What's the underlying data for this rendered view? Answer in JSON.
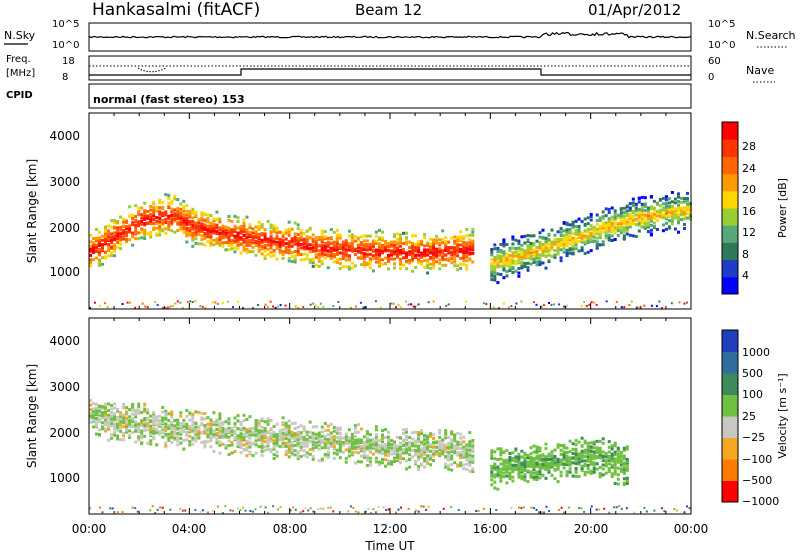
{
  "header": {
    "station": "Hankasalmi (fitACF)",
    "beam": "Beam 12",
    "date": "01/Apr/2012"
  },
  "noise_panel": {
    "left_label": "N.Sky",
    "left_ticks": [
      "10^5",
      "10^0"
    ],
    "right_ticks": [
      "10^5",
      "10^0"
    ],
    "right_label": "N.Search"
  },
  "freq_panel": {
    "label_line1": "Freq.",
    "label_line2": "[MHz]",
    "left_ticks": [
      "18",
      "8"
    ],
    "right_ticks": [
      "60",
      "0"
    ],
    "right_label": "Nave",
    "cpid_label": "CPID"
  },
  "cpid_text": "normal (fast stereo) 153",
  "power_panel": {
    "ylabel": "Slant Range [km]",
    "yticks": [
      "4000",
      "3000",
      "2000",
      "1000"
    ],
    "colorbar_label": "Power [dB]",
    "colorbar_ticks": [
      "28",
      "24",
      "20",
      "16",
      "12",
      "8",
      "4"
    ],
    "colors": [
      "#0000ff",
      "#1e3cc8",
      "#2d7a5a",
      "#55a878",
      "#9acd32",
      "#ffd700",
      "#ff9900",
      "#ff6600",
      "#ff3300",
      "#ff0000"
    ]
  },
  "velocity_panel": {
    "ylabel": "Slant Range [km]",
    "yticks": [
      "4000",
      "3000",
      "2000",
      "1000"
    ],
    "colorbar_label": "Velocity [m s⁻¹]",
    "colorbar_ticks": [
      "1000",
      "500",
      "100",
      "25",
      "−25",
      "−100",
      "−500",
      "−1000"
    ],
    "colors": [
      "#1f3fbf",
      "#2f6fa0",
      "#3d8a5a",
      "#6fc040",
      "#c8c8c0",
      "#f5a623",
      "#ff7a00",
      "#ff0000"
    ]
  },
  "x_axis": {
    "ticks": [
      "00:00",
      "04:00",
      "08:00",
      "12:00",
      "16:00",
      "20:00",
      "00:00"
    ],
    "label": "Time UT"
  },
  "chart_data": [
    {
      "type": "heatmap",
      "title": "Power",
      "xlabel": "Time UT",
      "ylabel": "Slant Range [km]",
      "xlim_hours": [
        0,
        24
      ],
      "ylim_km": [
        180,
        4600
      ],
      "colorbar_range_db": [
        0,
        32
      ],
      "bands": [
        {
          "x": [
            0,
            2,
            3.3,
            4,
            6,
            8,
            10,
            12,
            14,
            15.3
          ],
          "y": [
            1500,
            2200,
            2350,
            2100,
            1850,
            1700,
            1550,
            1500,
            1500,
            1550
          ],
          "mean_db": 22
        },
        {
          "x": [
            16,
            18,
            20,
            22,
            24
          ],
          "y": [
            1250,
            1550,
            1950,
            2300,
            2450
          ],
          "mean_db": 12
        }
      ]
    },
    {
      "type": "heatmap",
      "title": "Velocity",
      "xlabel": "Time UT",
      "ylabel": "Slant Range [km]",
      "xlim_hours": [
        0,
        24
      ],
      "ylim_km": [
        180,
        4600
      ],
      "colorbar_range_ms": [
        -1000,
        1000
      ],
      "bands": [
        {
          "x": [
            0,
            4,
            8,
            12,
            15.3
          ],
          "y": [
            2400,
            2100,
            1900,
            1700,
            1600
          ],
          "mean_ms": 0
        },
        {
          "x": [
            16,
            18,
            20,
            21.5
          ],
          "y": [
            1200,
            1350,
            1500,
            1300
          ],
          "mean_ms": 200
        }
      ]
    }
  ]
}
